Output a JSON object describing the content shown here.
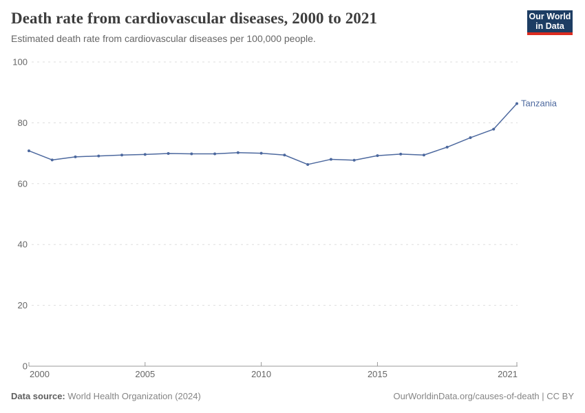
{
  "header": {
    "title": "Death rate from cardiovascular diseases, 2000 to 2021",
    "subtitle": "Estimated death rate from cardiovascular diseases per 100,000 people.",
    "logo": {
      "line1": "Our World",
      "line2": "in Data",
      "bg_color": "#1d3d63",
      "accent_color": "#dc2c20"
    }
  },
  "chart_data": {
    "type": "line",
    "title": "Death rate from cardiovascular diseases, 2000 to 2021",
    "subtitle": "Estimated death rate from cardiovascular diseases per 100,000 people.",
    "xlabel": "",
    "ylabel": "",
    "x": [
      2000,
      2001,
      2002,
      2003,
      2004,
      2005,
      2006,
      2007,
      2008,
      2009,
      2010,
      2011,
      2012,
      2013,
      2014,
      2015,
      2016,
      2017,
      2018,
      2019,
      2020,
      2021
    ],
    "series": [
      {
        "name": "Tanzania",
        "color": "#4c689e",
        "values": [
          70.8,
          67.8,
          68.8,
          69.1,
          69.4,
          69.6,
          69.9,
          69.8,
          69.8,
          70.2,
          70.0,
          69.4,
          66.3,
          68.0,
          67.7,
          69.2,
          69.7,
          69.4,
          72.0,
          75.1,
          77.9,
          86.3
        ]
      }
    ],
    "xlim": [
      2000,
      2021
    ],
    "ylim": [
      0,
      100
    ],
    "yticks": [
      0,
      20,
      40,
      60,
      80,
      100
    ],
    "xticks": [
      2000,
      2005,
      2010,
      2015,
      2021
    ],
    "grid": "horizontal-dashed",
    "legend_position": "end-of-line-label",
    "colors": {
      "gridline": "#dddddd",
      "axis_line": "#999999",
      "tick_label": "#666666"
    }
  },
  "footer": {
    "source_label": "Data source:",
    "source_value": " World Health Organization (2024)",
    "rights": "OurWorldinData.org/causes-of-death | CC BY"
  }
}
